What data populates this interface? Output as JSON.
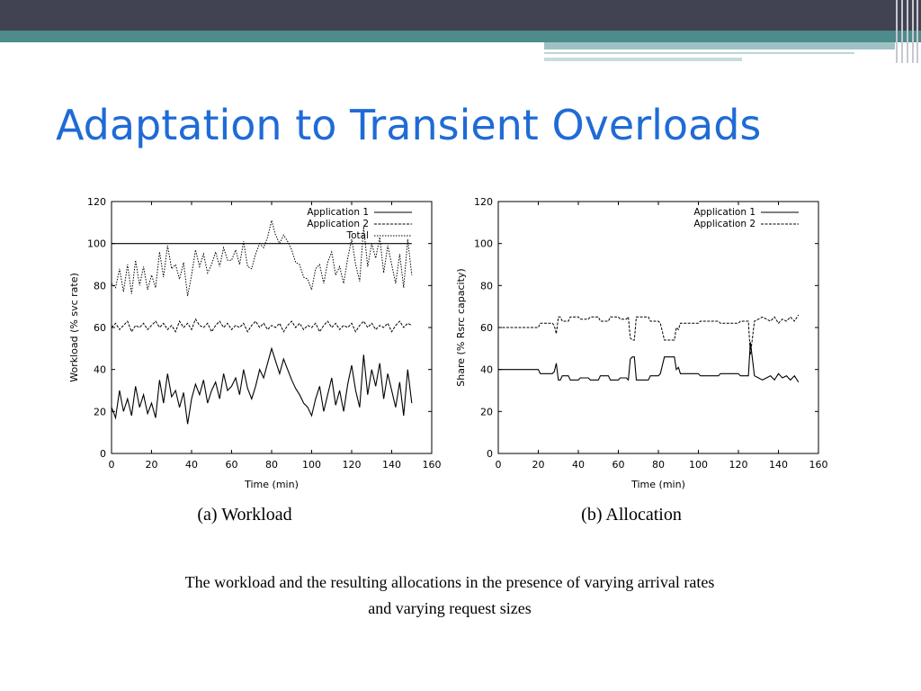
{
  "slide": {
    "title": "Adaptation to Transient Overloads",
    "caption_line1": "The workload and the resulting allocations in the presence of varying arrival rates",
    "caption_line2": "and varying request sizes"
  },
  "colors": {
    "top_bar": "#414353",
    "accent_bar": "#4d8b8c",
    "title": "#1f6bd6"
  },
  "chart_data": [
    {
      "type": "line",
      "subtitle": "(a) Workload",
      "xlabel": "Time (min)",
      "ylabel": "Workload (% svc rate)",
      "xlim": [
        0,
        160
      ],
      "ylim": [
        0,
        120
      ],
      "xticks": [
        0,
        20,
        40,
        60,
        80,
        100,
        120,
        140,
        160
      ],
      "yticks": [
        0,
        20,
        40,
        60,
        80,
        100,
        120
      ],
      "legend_position": "top-right",
      "reference_line": {
        "y": 100
      },
      "series": [
        {
          "name": "Application 1",
          "style": "solid",
          "x": [
            0,
            2,
            4,
            6,
            8,
            10,
            12,
            14,
            16,
            18,
            20,
            22,
            24,
            26,
            28,
            30,
            32,
            34,
            36,
            38,
            40,
            42,
            44,
            46,
            48,
            50,
            52,
            54,
            56,
            58,
            60,
            62,
            64,
            66,
            68,
            70,
            72,
            74,
            76,
            78,
            80,
            82,
            84,
            86,
            88,
            90,
            92,
            94,
            96,
            98,
            100,
            102,
            104,
            106,
            108,
            110,
            112,
            114,
            116,
            118,
            120,
            122,
            124,
            126,
            128,
            130,
            132,
            134,
            136,
            138,
            140,
            142,
            144,
            146,
            148,
            150
          ],
          "y": [
            22,
            17,
            30,
            20,
            26,
            18,
            32,
            22,
            28,
            19,
            24,
            17,
            35,
            24,
            38,
            27,
            30,
            22,
            29,
            14,
            26,
            33,
            28,
            35,
            24,
            30,
            34,
            26,
            38,
            30,
            32,
            36,
            28,
            40,
            31,
            26,
            32,
            40,
            36,
            43,
            50,
            44,
            38,
            45,
            40,
            35,
            31,
            28,
            24,
            22,
            18,
            26,
            32,
            20,
            28,
            36,
            23,
            30,
            20,
            33,
            42,
            30,
            22,
            47,
            28,
            40,
            32,
            43,
            26,
            38,
            30,
            22,
            34,
            18,
            40,
            24
          ]
        },
        {
          "name": "Application 2",
          "style": "dashed",
          "x": [
            0,
            2,
            4,
            6,
            8,
            10,
            12,
            14,
            16,
            18,
            20,
            22,
            24,
            26,
            28,
            30,
            32,
            34,
            36,
            38,
            40,
            42,
            44,
            46,
            48,
            50,
            52,
            54,
            56,
            58,
            60,
            62,
            64,
            66,
            68,
            70,
            72,
            74,
            76,
            78,
            80,
            82,
            84,
            86,
            88,
            90,
            92,
            94,
            96,
            98,
            100,
            102,
            104,
            106,
            108,
            110,
            112,
            114,
            116,
            118,
            120,
            122,
            124,
            126,
            128,
            130,
            132,
            134,
            136,
            138,
            140,
            142,
            144,
            146,
            148,
            150
          ],
          "y": [
            60,
            62,
            59,
            61,
            63,
            58,
            61,
            60,
            62,
            59,
            61,
            63,
            60,
            62,
            59,
            61,
            58,
            63,
            60,
            62,
            59,
            64,
            61,
            60,
            62,
            58,
            61,
            63,
            60,
            62,
            59,
            61,
            60,
            62,
            58,
            61,
            63,
            60,
            62,
            59,
            61,
            60,
            62,
            58,
            61,
            63,
            60,
            62,
            59,
            61,
            60,
            62,
            58,
            61,
            63,
            60,
            62,
            59,
            61,
            60,
            62,
            58,
            61,
            63,
            60,
            62,
            59,
            61,
            60,
            62,
            58,
            61,
            63,
            60,
            62,
            61
          ]
        },
        {
          "name": "Total",
          "style": "dotted",
          "x": [
            0,
            2,
            4,
            6,
            8,
            10,
            12,
            14,
            16,
            18,
            20,
            22,
            24,
            26,
            28,
            30,
            32,
            34,
            36,
            38,
            40,
            42,
            44,
            46,
            48,
            50,
            52,
            54,
            56,
            58,
            60,
            62,
            64,
            66,
            68,
            70,
            72,
            74,
            76,
            78,
            80,
            82,
            84,
            86,
            88,
            90,
            92,
            94,
            96,
            98,
            100,
            102,
            104,
            106,
            108,
            110,
            112,
            114,
            116,
            118,
            120,
            122,
            124,
            126,
            128,
            130,
            132,
            134,
            136,
            138,
            140,
            142,
            144,
            146,
            148,
            150
          ],
          "y": [
            81,
            79,
            88,
            77,
            90,
            76,
            92,
            80,
            89,
            78,
            85,
            79,
            96,
            84,
            99,
            88,
            90,
            83,
            91,
            75,
            85,
            97,
            89,
            95,
            86,
            90,
            96,
            89,
            98,
            92,
            92,
            97,
            90,
            101,
            89,
            88,
            95,
            100,
            98,
            103,
            111,
            104,
            100,
            104,
            101,
            97,
            91,
            90,
            84,
            83,
            78,
            88,
            90,
            81,
            91,
            96,
            85,
            89,
            81,
            93,
            102,
            90,
            82,
            108,
            89,
            100,
            93,
            103,
            86,
            99,
            90,
            81,
            95,
            79,
            102,
            85
          ]
        }
      ]
    },
    {
      "type": "line",
      "subtitle": "(b) Allocation",
      "xlabel": "Time (min)",
      "ylabel": "Share (% Rsrc capacity)",
      "xlim": [
        0,
        160
      ],
      "ylim": [
        0,
        120
      ],
      "xticks": [
        0,
        20,
        40,
        60,
        80,
        100,
        120,
        140,
        160
      ],
      "yticks": [
        0,
        20,
        40,
        60,
        80,
        100,
        120
      ],
      "legend_position": "top-right",
      "series": [
        {
          "name": "Application 1",
          "style": "solid",
          "x": [
            0,
            20,
            21,
            27,
            28,
            29,
            30,
            31,
            32,
            35,
            36,
            40,
            41,
            45,
            46,
            50,
            51,
            55,
            56,
            60,
            61,
            64,
            65,
            66,
            67,
            68,
            69,
            75,
            76,
            80,
            81,
            83,
            84,
            88,
            89,
            90,
            91,
            92,
            100,
            101,
            110,
            111,
            120,
            121,
            125,
            126,
            127,
            128,
            130,
            132,
            134,
            136,
            138,
            140,
            142,
            144,
            146,
            148,
            150
          ],
          "y": [
            40,
            40,
            38,
            38,
            39,
            43,
            35,
            35,
            37,
            37,
            35,
            35,
            36,
            36,
            35,
            35,
            37,
            37,
            35,
            35,
            36,
            36,
            35,
            45,
            46,
            46,
            35,
            35,
            37,
            37,
            38,
            46,
            46,
            46,
            40,
            41,
            38,
            38,
            38,
            37,
            37,
            38,
            38,
            37,
            37,
            53,
            45,
            37,
            36,
            35,
            36,
            37,
            35,
            38,
            36,
            37,
            35,
            37,
            34
          ]
        },
        {
          "name": "Application 2",
          "style": "dashed",
          "x": [
            0,
            20,
            21,
            27,
            28,
            29,
            30,
            31,
            32,
            35,
            36,
            40,
            41,
            45,
            46,
            50,
            51,
            55,
            56,
            60,
            61,
            64,
            65,
            66,
            67,
            68,
            69,
            75,
            76,
            80,
            81,
            83,
            84,
            88,
            89,
            90,
            91,
            92,
            100,
            101,
            110,
            111,
            120,
            121,
            125,
            126,
            127,
            128,
            130,
            132,
            134,
            136,
            138,
            140,
            142,
            144,
            146,
            148,
            150
          ],
          "y": [
            60,
            60,
            62,
            62,
            61,
            57,
            65,
            65,
            63,
            63,
            65,
            65,
            64,
            64,
            65,
            65,
            63,
            63,
            65,
            65,
            64,
            64,
            65,
            55,
            54,
            54,
            65,
            65,
            63,
            63,
            62,
            54,
            54,
            54,
            60,
            59,
            62,
            62,
            62,
            63,
            63,
            62,
            62,
            63,
            63,
            47,
            55,
            63,
            64,
            65,
            64,
            63,
            65,
            62,
            64,
            63,
            65,
            63,
            66
          ]
        }
      ]
    }
  ]
}
